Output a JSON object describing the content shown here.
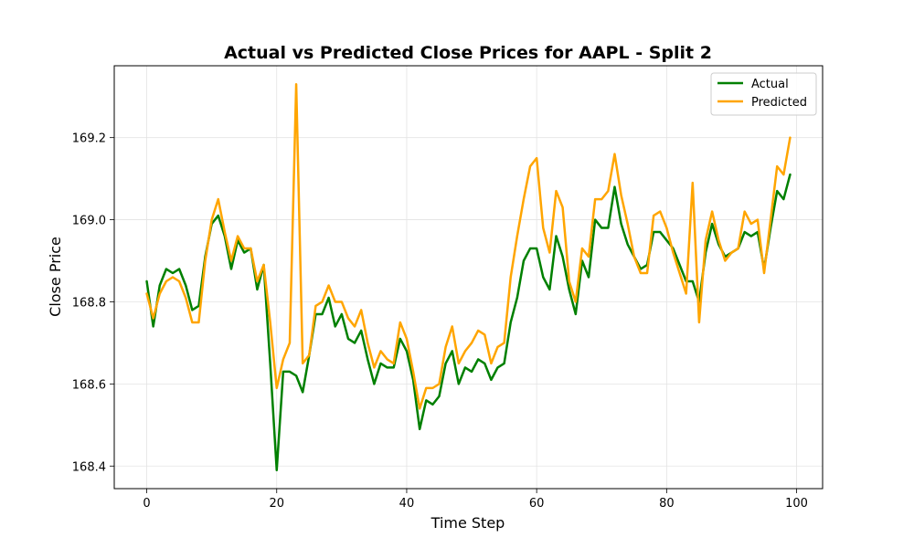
{
  "chart_data": {
    "type": "line",
    "title": "Actual vs Predicted Close Prices for AAPL - Split 2",
    "xlabel": "Time Step",
    "ylabel": "Close Price",
    "xlim": [
      -5,
      104
    ],
    "ylim": [
      168.345,
      169.375
    ],
    "xticks": [
      0,
      20,
      40,
      60,
      80,
      100
    ],
    "yticks": [
      168.4,
      168.6,
      168.8,
      169.0,
      169.2
    ],
    "ytick_labels": [
      "168.4",
      "168.6",
      "168.8",
      "169.0",
      "169.2"
    ],
    "grid": true,
    "legend_position": "top-right",
    "series": [
      {
        "name": "Actual",
        "color": "#008000",
        "values": [
          168.85,
          168.74,
          168.84,
          168.88,
          168.87,
          168.88,
          168.84,
          168.78,
          168.79,
          168.91,
          168.99,
          169.01,
          168.96,
          168.88,
          168.95,
          168.92,
          168.93,
          168.83,
          168.89,
          168.65,
          168.39,
          168.63,
          168.63,
          168.62,
          168.58,
          168.67,
          168.77,
          168.77,
          168.81,
          168.74,
          168.77,
          168.71,
          168.7,
          168.73,
          168.66,
          168.6,
          168.65,
          168.64,
          168.64,
          168.71,
          168.68,
          168.61,
          168.49,
          168.56,
          168.55,
          168.57,
          168.65,
          168.68,
          168.6,
          168.64,
          168.63,
          168.66,
          168.65,
          168.61,
          168.64,
          168.65,
          168.75,
          168.81,
          168.9,
          168.93,
          168.93,
          168.86,
          168.83,
          168.96,
          168.91,
          168.83,
          168.77,
          168.9,
          168.86,
          169.0,
          168.98,
          168.98,
          169.08,
          168.99,
          168.94,
          168.91,
          168.88,
          168.89,
          168.97,
          168.97,
          168.95,
          168.93,
          168.89,
          168.85,
          168.85,
          168.8,
          168.92,
          168.99,
          168.94,
          168.91,
          168.92,
          168.93,
          168.97,
          168.96,
          168.97,
          168.88,
          168.98,
          169.07,
          169.05,
          169.11
        ]
      },
      {
        "name": "Predicted",
        "color": "#FFA500",
        "values": [
          168.82,
          168.76,
          168.82,
          168.85,
          168.86,
          168.85,
          168.81,
          168.75,
          168.75,
          168.9,
          169.0,
          169.05,
          168.97,
          168.9,
          168.96,
          168.93,
          168.93,
          168.85,
          168.89,
          168.75,
          168.59,
          168.66,
          168.7,
          169.33,
          168.65,
          168.67,
          168.79,
          168.8,
          168.84,
          168.8,
          168.8,
          168.76,
          168.74,
          168.78,
          168.7,
          168.64,
          168.68,
          168.66,
          168.65,
          168.75,
          168.71,
          168.63,
          168.54,
          168.59,
          168.59,
          168.6,
          168.69,
          168.74,
          168.65,
          168.68,
          168.7,
          168.73,
          168.72,
          168.65,
          168.69,
          168.7,
          168.86,
          168.96,
          169.05,
          169.13,
          169.15,
          168.98,
          168.92,
          169.07,
          169.03,
          168.85,
          168.8,
          168.93,
          168.91,
          169.05,
          169.05,
          169.07,
          169.16,
          169.06,
          168.99,
          168.91,
          168.87,
          168.87,
          169.01,
          169.02,
          168.98,
          168.92,
          168.87,
          168.82,
          169.09,
          168.75,
          168.95,
          169.02,
          168.95,
          168.9,
          168.92,
          168.93,
          169.02,
          168.99,
          169.0,
          168.87,
          169.0,
          169.13,
          169.11,
          169.2
        ]
      }
    ]
  }
}
